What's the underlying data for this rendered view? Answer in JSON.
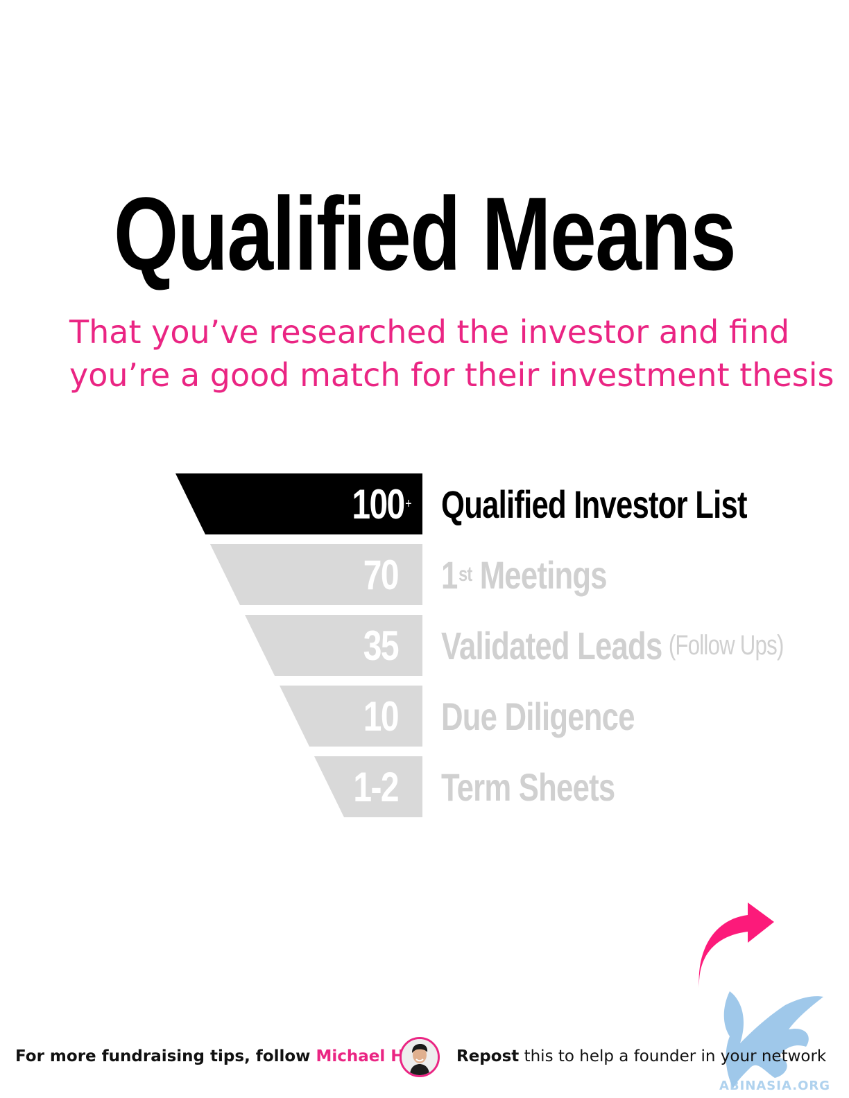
{
  "title": "Qualified Means",
  "subtitle": {
    "line1": "That you’ve researched the investor and find",
    "line2": "you’re a good match for their investment thesis"
  },
  "colors": {
    "accent": "#ea2583",
    "active_stage": "#000000",
    "muted_stage": "#d9d9d9",
    "muted_text": "#d0d0d0"
  },
  "funnel": {
    "stages": [
      {
        "count": "100",
        "plus": "+",
        "label": "Qualified Investor List",
        "active": true
      },
      {
        "count": "70",
        "label_number": "1",
        "label_sup": "st",
        "label": "Meetings",
        "active": false
      },
      {
        "count": "35",
        "label": "Validated Leads",
        "note": "(Follow Ups)",
        "active": false
      },
      {
        "count": "10",
        "label": "Due Diligence",
        "active": false
      },
      {
        "count": "1-2",
        "label": "Term Sheets",
        "active": false
      }
    ]
  },
  "footer": {
    "follow_text": "For more fundraising tips, follow",
    "author": "Michael Ho",
    "repost_bold": "Repost",
    "repost_rest": "this to help a founder in your network",
    "avatar_icon": "avatar-photo",
    "share_icon": "share-arrow-icon",
    "watermark_text": "ABINASIA.ORG"
  }
}
